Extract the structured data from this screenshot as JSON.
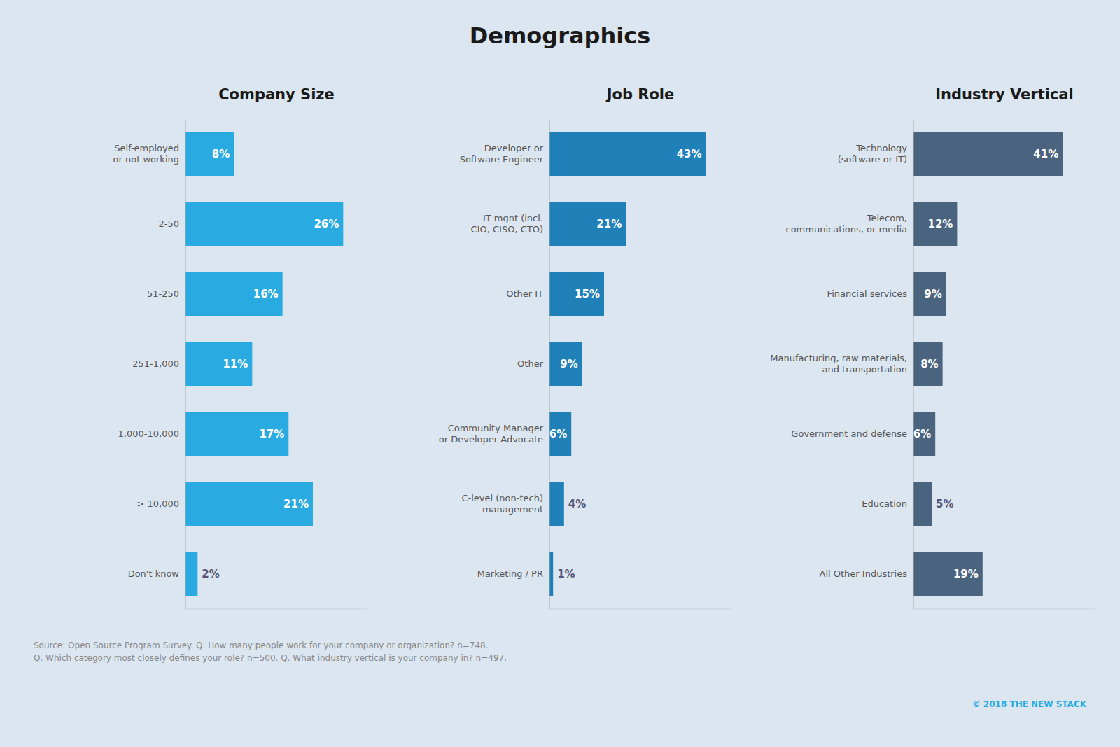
{
  "title": "Demographics",
  "annotations": [
    "Source: Open Source Program Survey. Q. How many people work for your company or organization? n=748.\nQ. Which category most closely defines your role? n=500. Q. What industry vertical is your company in? n=497.",
    "© 2018  THE NEW STACK"
  ],
  "chart_data": [
    {
      "type": "bar",
      "orientation": "horizontal",
      "title": "Company Size",
      "categories": [
        "Self-employed\nor not working",
        "2-50",
        "51-250",
        "251-1,000",
        "1,000-10,000",
        "> 10,000",
        "Don't know"
      ],
      "values": [
        8,
        26,
        16,
        11,
        17,
        21,
        2
      ],
      "value_labels": [
        "8%",
        "26%",
        "16%",
        "11%",
        "17%",
        "21%",
        "2%"
      ],
      "color": "#29abe2",
      "xlim": [
        0,
        30
      ],
      "data_labels": true,
      "tick_labels": "y",
      "grid": false
    },
    {
      "type": "bar",
      "orientation": "horizontal",
      "title": "Job Role",
      "categories": [
        "Developer or\nSoftware Engineer",
        "IT mgnt (incl.\nCIO, CISO, CTO)",
        "Other IT",
        "Other",
        "Community Manager\nor Developer Advocate",
        "C-level (non-tech)\nmanagement",
        "Marketing / PR"
      ],
      "values": [
        43,
        21,
        15,
        9,
        6,
        4,
        1
      ],
      "value_labels": [
        "43%",
        "21%",
        "15%",
        "9%",
        "6%",
        "4%",
        "1%"
      ],
      "color": "#2080b8",
      "xlim": [
        0,
        50
      ],
      "data_labels": true,
      "tick_labels": "y",
      "grid": false
    },
    {
      "type": "bar",
      "orientation": "horizontal",
      "title": "Industry Vertical",
      "categories": [
        "Technology\n(software or IT)",
        "Telecom,\ncommunications, or media",
        "Financial services",
        "Manufacturing, raw materials,\nand transportation",
        "Government and defense",
        "Education",
        "All Other Industries"
      ],
      "values": [
        41,
        12,
        9,
        8,
        6,
        5,
        19
      ],
      "value_labels": [
        "41%",
        "12%",
        "9%",
        "8%",
        "6%",
        "5%",
        "19%"
      ],
      "color": "#4a6480",
      "xlim": [
        0,
        50
      ],
      "data_labels": true,
      "tick_labels": "y",
      "grid": false
    }
  ]
}
